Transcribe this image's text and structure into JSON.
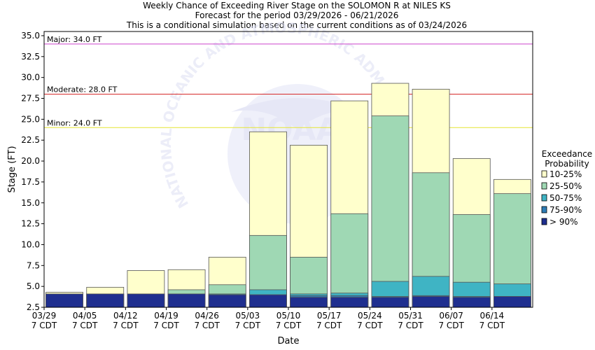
{
  "chart_data": {
    "type": "bar",
    "title_lines": [
      "Weekly Chance of Exceeding River Stage on the SOLOMON R at NILES KS",
      "Forecast for the period 03/29/2026 - 06/21/2026",
      "This is a conditional simulation based on the current conditions as of 03/24/2026"
    ],
    "xlabel": "Date",
    "ylabel": "Stage (FT)",
    "ylim": [
      2.5,
      35.5
    ],
    "yticks": [
      "2.5",
      "5.0",
      "7.5",
      "10.0",
      "12.5",
      "15.0",
      "17.5",
      "20.0",
      "22.5",
      "25.0",
      "27.5",
      "30.0",
      "32.5",
      "35.0"
    ],
    "categories": [
      "03/29",
      "04/05",
      "04/12",
      "04/19",
      "04/26",
      "05/03",
      "05/10",
      "05/17",
      "05/24",
      "05/31",
      "06/07",
      "06/14"
    ],
    "category_sublabel": "7 CDT",
    "series": [
      {
        "name": "> 90%",
        "color": "#1f2f8f",
        "values": [
          4.1,
          4.1,
          4.1,
          4.1,
          4.0,
          4.0,
          3.7,
          3.7,
          3.7,
          3.8,
          3.7,
          3.8
        ]
      },
      {
        "name": "75-90%",
        "color": "#2e7db6",
        "values": [
          4.1,
          4.1,
          4.1,
          4.1,
          4.0,
          4.0,
          3.9,
          3.9,
          3.8,
          3.9,
          3.8,
          3.8
        ]
      },
      {
        "name": "50-75%",
        "color": "#3fb4c4",
        "values": [
          4.1,
          4.1,
          4.1,
          4.1,
          4.1,
          4.6,
          4.1,
          4.2,
          5.6,
          6.2,
          5.5,
          5.3
        ]
      },
      {
        "name": "25-50%",
        "color": "#9fd8b4",
        "values": [
          4.1,
          4.1,
          4.1,
          4.6,
          5.2,
          11.1,
          8.5,
          13.7,
          25.4,
          18.6,
          13.6,
          16.1
        ]
      },
      {
        "name": "10-25%",
        "color": "#ffffcc",
        "values": [
          4.3,
          4.9,
          6.9,
          7.0,
          8.5,
          23.5,
          21.9,
          27.2,
          29.3,
          28.6,
          20.3,
          17.8
        ]
      }
    ],
    "flood_levels": [
      {
        "label": "Major: 34.0 FT",
        "value": 34.0,
        "color": "#cc44cc"
      },
      {
        "label": "Moderate: 28.0 FT",
        "value": 28.0,
        "color": "#d62a2a"
      },
      {
        "label": "Minor: 24.0 FT",
        "value": 24.0,
        "color": "#e6e633"
      }
    ],
    "legend": {
      "title_lines": [
        "Exceedance",
        "Probability"
      ],
      "position": "right"
    },
    "watermark_text": "NATIONAL OCEANIC AND ATMOSPHERIC ADMINISTRATION",
    "grid": false
  }
}
